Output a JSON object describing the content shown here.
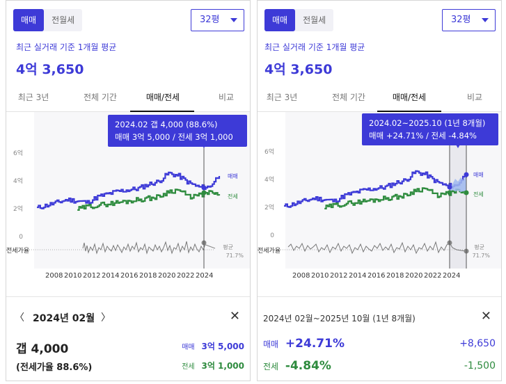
{
  "left": {
    "segment": {
      "sale": "매매",
      "rent": "전월세"
    },
    "area_select": "32평",
    "subtitle": "최근 실거래 기준 1개월 평균",
    "price": "4억 3,650",
    "tabs": [
      "최근 3년",
      "전체 기간",
      "매매/전세",
      "비교"
    ],
    "active_tab": 2,
    "tooltip": {
      "line1": "2024.02  갭 4,000 (88.6%)",
      "line2": "매매 3억 5,000 / 전세 3억 1,000"
    },
    "y_ticks": [
      "6억",
      "4억",
      "2억",
      "0"
    ],
    "ratio_label": "전세가율",
    "avg_label": "평균",
    "avg_value": "71.7%",
    "series_labels": {
      "sale": "매매",
      "jeonse": "전세"
    },
    "x_ticks": [
      "2008",
      "2010",
      "2012",
      "2014",
      "2016",
      "2018",
      "2020",
      "2022",
      "2024"
    ],
    "detail": {
      "prev": "〈",
      "title": "2024년 02월",
      "next": "〉",
      "close": "✕",
      "gap": "갭 4,000",
      "ratio": "(전세가율 88.6%)",
      "sale_label": "매매",
      "sale_value": "3억 5,000",
      "jeonse_label": "전세",
      "jeonse_value": "3억 1,000"
    }
  },
  "right": {
    "segment": {
      "sale": "매매",
      "rent": "전월세"
    },
    "area_select": "32평",
    "subtitle": "최근 실거래 기준 1개월 평균",
    "price": "4억 3,650",
    "tabs": [
      "최근 3년",
      "전체 기간",
      "매매/전세",
      "비교"
    ],
    "active_tab": 2,
    "tooltip": {
      "line1": "2024.02~2025.10 (1년 8개월)",
      "line2": "매매 +24.71%  /  전세 -4.84%"
    },
    "y_ticks": [
      "6억",
      "4억",
      "2억",
      "0"
    ],
    "ratio_label": "전세가율",
    "avg_label": "평균",
    "avg_value": "71.7%",
    "series_labels": {
      "sale": "매매",
      "jeonse": "전세"
    },
    "x_ticks": [
      "2008",
      "2010",
      "2012",
      "2014",
      "2016",
      "2018",
      "2020",
      "2022",
      "2024"
    ],
    "detail": {
      "title": "2024년 02월~2025년 10월 (1년 8개월)",
      "close": "✕",
      "sale_label": "매매",
      "sale_pct": "+24.71%",
      "sale_diff": "+8,650",
      "jeonse_label": "전세",
      "jeonse_pct": "-4.84%",
      "jeonse_diff": "-1,500"
    }
  },
  "colors": {
    "accent": "#3d3ad7",
    "sale": "#3d3ad7",
    "jeonse": "#2e8b3e",
    "ratio": "#777777"
  },
  "chart_data": {
    "type": "line",
    "x": [
      2007,
      2008,
      2009,
      2010,
      2011,
      2012,
      2013,
      2014,
      2015,
      2016,
      2017,
      2018,
      2019,
      2020,
      2021,
      2022,
      2023,
      2024,
      2025
    ],
    "series": [
      {
        "name": "매매",
        "values": [
          2.0,
          2.2,
          2.4,
          2.6,
          2.5,
          2.4,
          2.8,
          3.0,
          3.2,
          3.3,
          3.4,
          3.7,
          3.9,
          4.5,
          4.3,
          3.8,
          3.5,
          3.5,
          4.37
        ]
      },
      {
        "name": "전세",
        "values": [
          null,
          null,
          null,
          null,
          1.9,
          2.1,
          2.2,
          2.3,
          2.4,
          2.5,
          2.6,
          2.7,
          2.8,
          3.2,
          3.3,
          2.8,
          2.9,
          3.1,
          2.95
        ]
      }
    ],
    "ylim": [
      0,
      6
    ]
  }
}
